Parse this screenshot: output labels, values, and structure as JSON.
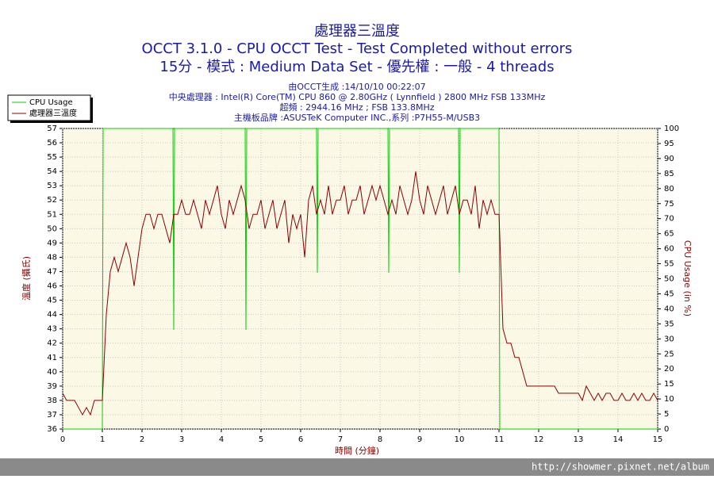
{
  "chart_data": {
    "type": "line",
    "title": "處理器三溫度",
    "subtitle": [
      "OCCT 3.1.0 - CPU OCCT Test - Test Completed without errors",
      "15分 - 模式 : Medium Data Set - 優先權 : 一般 - 4 threads"
    ],
    "info": [
      "由OCCT生成 :14/10/10 00:22:07",
      "中央處理器 : Intel(R) Core(TM) CPU 860 @ 2.80GHz ( Lynnfield ) 2800 MHz FSB 133MHz",
      "超頻 : 2944.16 MHz ; FSB 133.8MHz",
      "主機板品牌 :ASUSTeK Computer INC.,系列 :P7H55-M/USB3"
    ],
    "x_label": "時間 (分鐘)",
    "y_label": "溫度 (攝氏)",
    "y2_label": "CPU Usage (in %)",
    "footer": "http://showmer.pixnet.net/album",
    "xlim": [
      0,
      15
    ],
    "xticks": [
      0,
      1,
      2,
      3,
      4,
      5,
      6,
      7,
      8,
      9,
      10,
      11,
      12,
      13,
      14,
      15
    ],
    "ylim": [
      36,
      57
    ],
    "yticks": [
      36,
      37,
      38,
      39,
      40,
      41,
      42,
      43,
      44,
      45,
      46,
      47,
      48,
      49,
      50,
      51,
      52,
      53,
      54,
      55,
      56,
      57
    ],
    "y2lim": [
      0,
      100
    ],
    "y2ticks": [
      0,
      5,
      10,
      15,
      20,
      25,
      30,
      35,
      40,
      45,
      50,
      55,
      60,
      65,
      70,
      75,
      80,
      85,
      90,
      95,
      100
    ],
    "grid": true,
    "legend": "top-left",
    "series": [
      {
        "name": "CPU Usage",
        "color": "#00d000",
        "axis": "y2",
        "x": [
          0,
          1,
          1.02,
          2.78,
          2.8,
          2.82,
          4.6,
          4.62,
          4.64,
          6.4,
          6.42,
          6.44,
          8.2,
          8.22,
          8.24,
          9.98,
          10,
          10.02,
          11,
          11.02,
          15
        ],
        "values": [
          0,
          0,
          100,
          100,
          33,
          100,
          100,
          33,
          100,
          100,
          52,
          100,
          100,
          52,
          100,
          100,
          52,
          100,
          100,
          0,
          0
        ]
      },
      {
        "name": "處理器三溫度",
        "color": "#8b0000",
        "x": [
          0,
          0.1,
          0.2,
          0.3,
          0.4,
          0.5,
          0.6,
          0.7,
          0.8,
          0.9,
          1,
          1.1,
          1.2,
          1.3,
          1.4,
          1.5,
          1.6,
          1.7,
          1.8,
          1.9,
          2,
          2.1,
          2.2,
          2.3,
          2.4,
          2.5,
          2.6,
          2.7,
          2.8,
          2.9,
          3,
          3.1,
          3.2,
          3.3,
          3.4,
          3.5,
          3.6,
          3.7,
          3.8,
          3.9,
          4,
          4.1,
          4.2,
          4.3,
          4.4,
          4.5,
          4.6,
          4.7,
          4.8,
          4.9,
          5,
          5.1,
          5.2,
          5.3,
          5.4,
          5.5,
          5.6,
          5.7,
          5.8,
          5.9,
          6,
          6.1,
          6.2,
          6.3,
          6.4,
          6.5,
          6.6,
          6.7,
          6.8,
          6.9,
          7,
          7.1,
          7.2,
          7.3,
          7.4,
          7.5,
          7.6,
          7.7,
          7.8,
          7.9,
          8,
          8.1,
          8.2,
          8.3,
          8.4,
          8.5,
          8.6,
          8.7,
          8.8,
          8.9,
          9,
          9.1,
          9.2,
          9.3,
          9.4,
          9.5,
          9.6,
          9.7,
          9.8,
          9.9,
          10,
          10.1,
          10.2,
          10.3,
          10.4,
          10.5,
          10.6,
          10.7,
          10.8,
          10.9,
          11,
          11.1,
          11.2,
          11.3,
          11.4,
          11.5,
          11.6,
          11.7,
          11.8,
          11.9,
          12,
          12.1,
          12.2,
          12.3,
          12.4,
          12.5,
          12.6,
          12.7,
          12.8,
          12.9,
          13,
          13.1,
          13.2,
          13.3,
          13.4,
          13.5,
          13.6,
          13.7,
          13.8,
          13.9,
          14,
          14.1,
          14.2,
          14.3,
          14.4,
          14.5,
          14.6,
          14.7,
          14.8,
          14.9,
          15
        ],
        "values": [
          38.5,
          38,
          38,
          38,
          37.5,
          37,
          37.5,
          37,
          38,
          38,
          38,
          44,
          47,
          48,
          47,
          48,
          49,
          48,
          46,
          48,
          50,
          51,
          51,
          50,
          51,
          51,
          50,
          49,
          51,
          51,
          52,
          51,
          51,
          52,
          51,
          50,
          52,
          51,
          52,
          53,
          51,
          50,
          52,
          51,
          52,
          53,
          52,
          50,
          51,
          51,
          52,
          50,
          51,
          52,
          50,
          51,
          52,
          49,
          51,
          50,
          51,
          48,
          52,
          53,
          51,
          52,
          51,
          53,
          51,
          52,
          52,
          53,
          51,
          52,
          52,
          53,
          51,
          52,
          53,
          52,
          53,
          52,
          51,
          52,
          51,
          53,
          52,
          51,
          52,
          54,
          52,
          51,
          53,
          52,
          51,
          52,
          53,
          51,
          52,
          53,
          51,
          52,
          52,
          51,
          53,
          50,
          52,
          51,
          52,
          51,
          51,
          43,
          42,
          42,
          41,
          41,
          40,
          39,
          39,
          39,
          39,
          39,
          39,
          39,
          39,
          38.5,
          38.5,
          38.5,
          38.5,
          38.5,
          38.5,
          38,
          39,
          38.5,
          38,
          38.5,
          38,
          38.5,
          38.5,
          38,
          38,
          38.5,
          38,
          38,
          38.5,
          38,
          38.5,
          38,
          38,
          38.5,
          38
        ]
      }
    ]
  }
}
